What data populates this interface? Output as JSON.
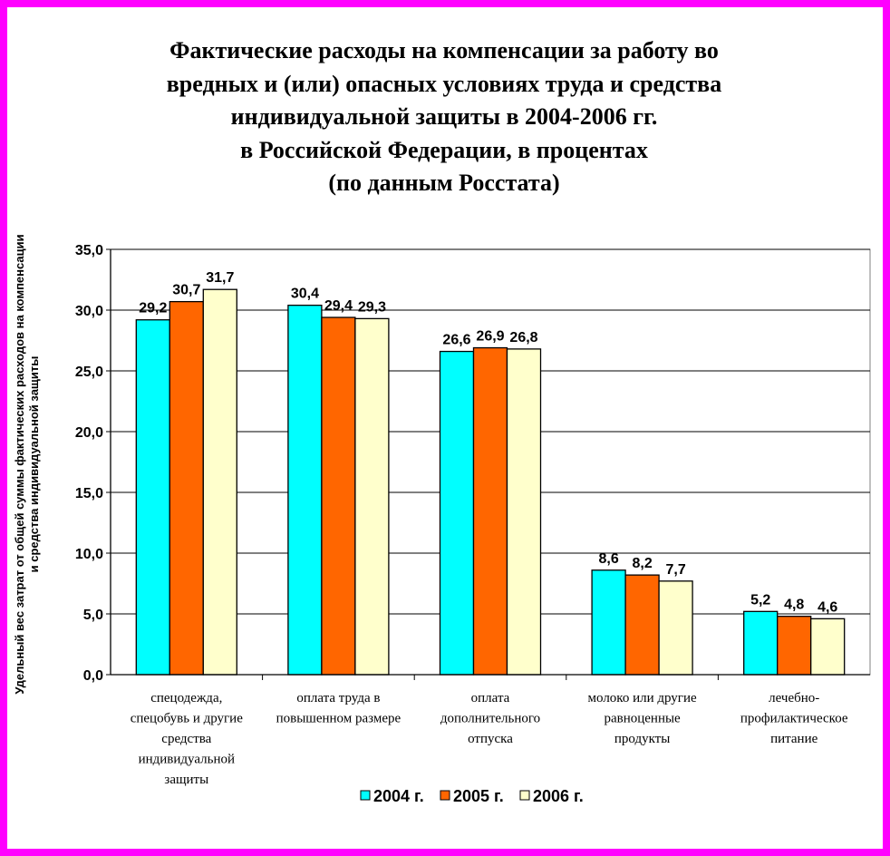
{
  "chart_data": {
    "type": "bar",
    "title_lines": [
      "Фактические расходы на компенсации за работу во",
      "вредных и (или) опасных условиях труда и средства",
      "индивидуальной защиты в 2004-2006 гг.",
      "в Российской Федерации, в процентах",
      "(по данным Росстата)"
    ],
    "ylabel_lines": [
      "Удельный вес затрат от общей суммы фактических расходов на компенсации",
      "и средства индивидуальной защиты"
    ],
    "ylim": [
      0,
      35
    ],
    "yticks": [
      "0,0",
      "5,0",
      "10,0",
      "15,0",
      "20,0",
      "25,0",
      "30,0",
      "35,0"
    ],
    "categories": [
      [
        "спецодежда,",
        "спецобувь и другие",
        "средства",
        "индивидуальной",
        "защиты"
      ],
      [
        "оплата труда в",
        "повышенном размере"
      ],
      [
        "оплата",
        "дополнительного",
        "отпуска"
      ],
      [
        "молоко или другие",
        "равноценные",
        "продукты"
      ],
      [
        "лечебно-",
        "профилактическое",
        "питание"
      ]
    ],
    "series": [
      {
        "name": "2004 г.",
        "color": "#00ffff",
        "values": [
          29.2,
          30.4,
          26.6,
          8.6,
          5.2
        ],
        "labels": [
          "29,2",
          "30,4",
          "26,6",
          "8,6",
          "5,2"
        ]
      },
      {
        "name": "2005 г.",
        "color": "#ff6600",
        "values": [
          30.7,
          29.4,
          26.9,
          8.2,
          4.8
        ],
        "labels": [
          "30,7",
          "29,4",
          "26,9",
          "8,2",
          "4,8"
        ]
      },
      {
        "name": "2006 г.",
        "color": "#ffffcc",
        "values": [
          31.7,
          29.3,
          26.8,
          7.7,
          4.6
        ],
        "labels": [
          "31,7",
          "29,3",
          "26,8",
          "7,7",
          "4,6"
        ]
      }
    ],
    "grid": true,
    "legend_position": "bottom"
  }
}
